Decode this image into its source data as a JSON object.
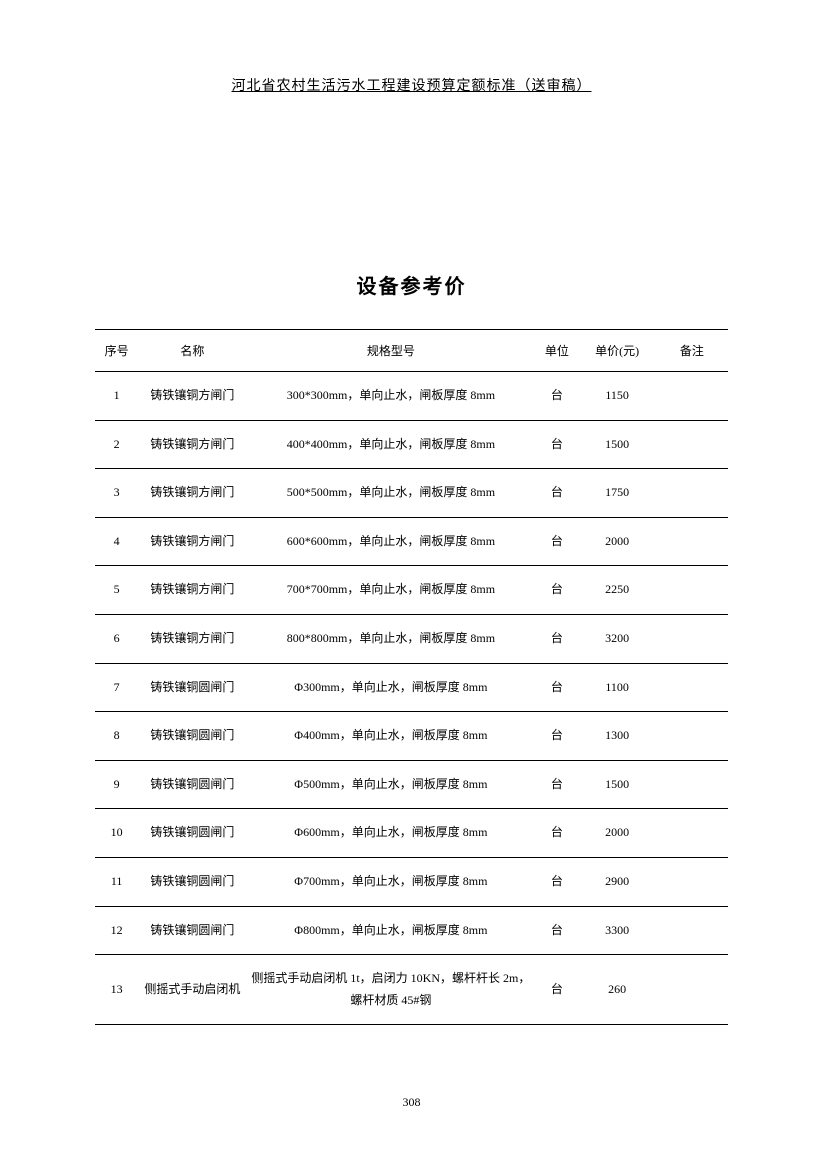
{
  "header": {
    "title": "河北省农村生活污水工程建设预算定额标准（送审稿）"
  },
  "section": {
    "title": "设备参考价"
  },
  "table": {
    "columns": {
      "seq": "序号",
      "name": "名称",
      "spec": "规格型号",
      "unit": "单位",
      "price": "单价(元)",
      "remark": "备注"
    },
    "rows": [
      {
        "seq": "1",
        "name": "铸铁镶铜方闸门",
        "spec": "300*300mm，单向止水，闸板厚度 8mm",
        "unit": "台",
        "price": "1150",
        "remark": ""
      },
      {
        "seq": "2",
        "name": "铸铁镶铜方闸门",
        "spec": "400*400mm，单向止水，闸板厚度 8mm",
        "unit": "台",
        "price": "1500",
        "remark": ""
      },
      {
        "seq": "3",
        "name": "铸铁镶铜方闸门",
        "spec": "500*500mm，单向止水，闸板厚度 8mm",
        "unit": "台",
        "price": "1750",
        "remark": ""
      },
      {
        "seq": "4",
        "name": "铸铁镶铜方闸门",
        "spec": "600*600mm，单向止水，闸板厚度 8mm",
        "unit": "台",
        "price": "2000",
        "remark": ""
      },
      {
        "seq": "5",
        "name": "铸铁镶铜方闸门",
        "spec": "700*700mm，单向止水，闸板厚度 8mm",
        "unit": "台",
        "price": "2250",
        "remark": ""
      },
      {
        "seq": "6",
        "name": "铸铁镶铜方闸门",
        "spec": "800*800mm，单向止水，闸板厚度 8mm",
        "unit": "台",
        "price": "3200",
        "remark": ""
      },
      {
        "seq": "7",
        "name": "铸铁镶铜圆闸门",
        "spec": "Φ300mm，单向止水，闸板厚度 8mm",
        "unit": "台",
        "price": "1100",
        "remark": ""
      },
      {
        "seq": "8",
        "name": "铸铁镶铜圆闸门",
        "spec": "Φ400mm，单向止水，闸板厚度 8mm",
        "unit": "台",
        "price": "1300",
        "remark": ""
      },
      {
        "seq": "9",
        "name": "铸铁镶铜圆闸门",
        "spec": "Φ500mm，单向止水，闸板厚度 8mm",
        "unit": "台",
        "price": "1500",
        "remark": ""
      },
      {
        "seq": "10",
        "name": "铸铁镶铜圆闸门",
        "spec": "Φ600mm，单向止水，闸板厚度 8mm",
        "unit": "台",
        "price": "2000",
        "remark": ""
      },
      {
        "seq": "11",
        "name": "铸铁镶铜圆闸门",
        "spec": "Φ700mm，单向止水，闸板厚度 8mm",
        "unit": "台",
        "price": "2900",
        "remark": ""
      },
      {
        "seq": "12",
        "name": "铸铁镶铜圆闸门",
        "spec": "Φ800mm，单向止水，闸板厚度 8mm",
        "unit": "台",
        "price": "3300",
        "remark": ""
      },
      {
        "seq": "13",
        "name": "侧摇式手动启闭机",
        "spec": "侧摇式手动启闭机 1t，启闭力 10KN，螺杆杆长 2m，螺杆材质 45#钢",
        "unit": "台",
        "price": "260",
        "remark": ""
      }
    ]
  },
  "footer": {
    "page_number": "308"
  }
}
